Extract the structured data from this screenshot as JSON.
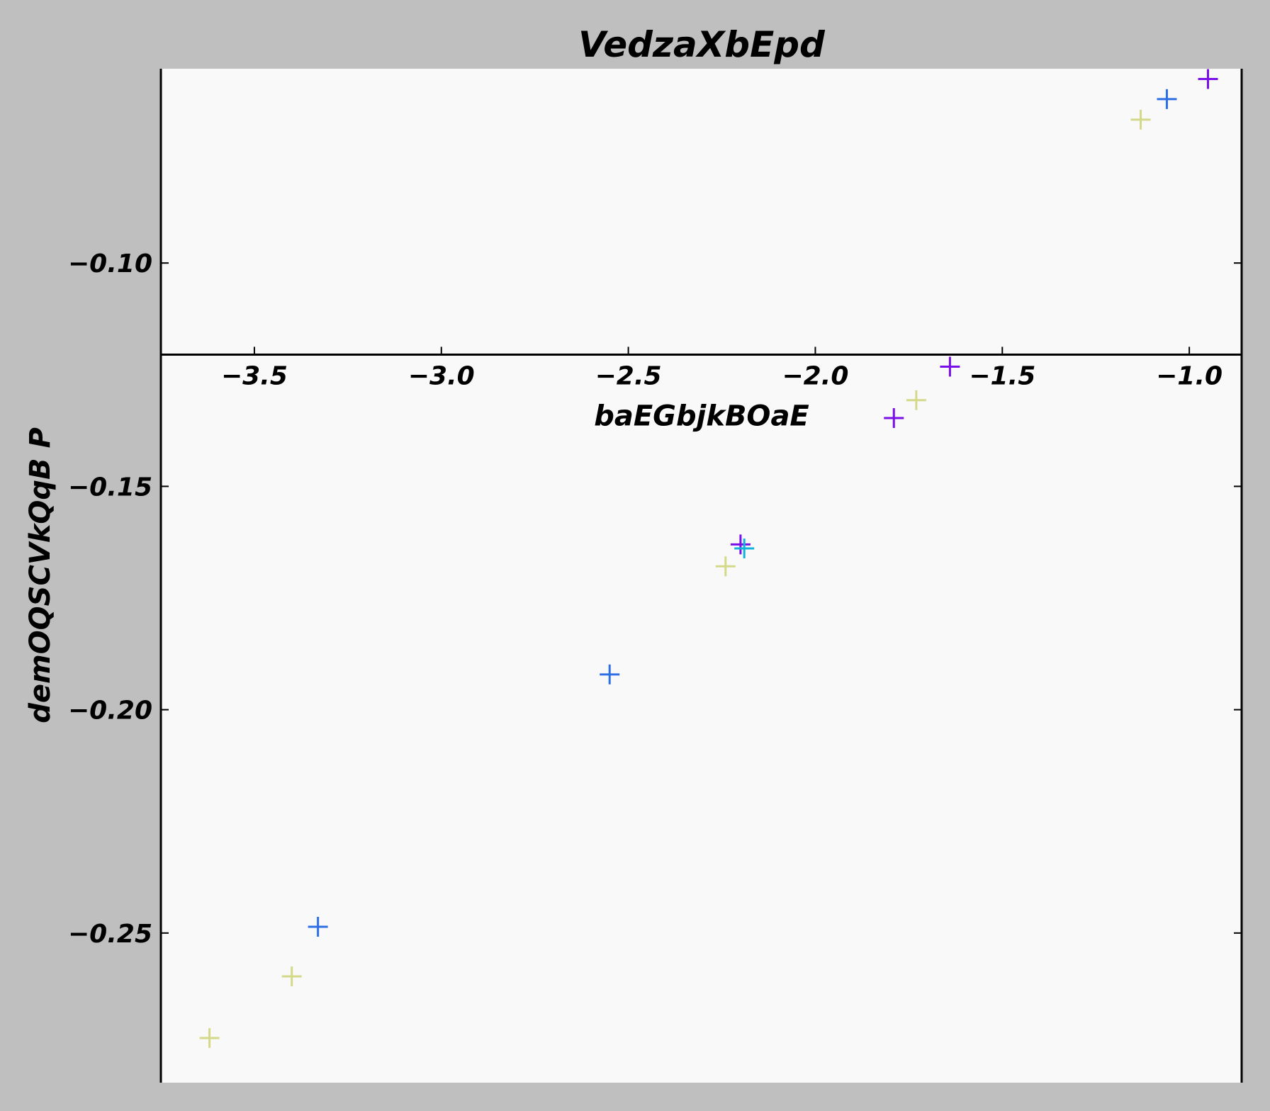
{
  "chart_data": {
    "type": "scatter",
    "title": "VedzaXbEpd",
    "xlabel": "baEGbjkBOaE",
    "ylabel": "demOQSCVkQqB P",
    "xlim": [
      -3.75,
      -0.86
    ],
    "ylim": [
      -0.2835,
      -0.0565
    ],
    "x_ticks": [
      -3.5,
      -3.0,
      -2.5,
      -2.0,
      -1.5,
      -1.0
    ],
    "x_tick_labels": [
      "−3.5",
      "−3.0",
      "−2.5",
      "−2.0",
      "−1.5",
      "−1.0"
    ],
    "y_ticks": [
      -0.1,
      -0.15,
      -0.2,
      -0.25
    ],
    "y_tick_labels": [
      "−0.10",
      "−0.15",
      "−0.20",
      "−0.25"
    ],
    "x_axis_position_y": -0.1205,
    "marker": "plus",
    "grid": false,
    "background": "#f9f9f9",
    "series": [
      {
        "color": "#d4d98a",
        "points": [
          [
            -3.62,
            -0.2735
          ],
          [
            -3.4,
            -0.2597
          ],
          [
            -2.24,
            -0.1679
          ],
          [
            -1.73,
            -0.1307
          ],
          [
            -1.13,
            -0.0679
          ]
        ]
      },
      {
        "color": "#2f6fe6",
        "points": [
          [
            -3.33,
            -0.2486
          ],
          [
            -2.55,
            -0.1921
          ],
          [
            -1.06,
            -0.0633
          ]
        ]
      },
      {
        "color": "#7a0ee8",
        "points": [
          [
            -2.2,
            -0.163
          ],
          [
            -1.79,
            -0.1347
          ],
          [
            -1.64,
            -0.1232
          ],
          [
            -0.95,
            -0.0588
          ]
        ]
      },
      {
        "color": "#12b2dd",
        "points": [
          [
            -2.19,
            -0.1639
          ]
        ]
      }
    ]
  }
}
